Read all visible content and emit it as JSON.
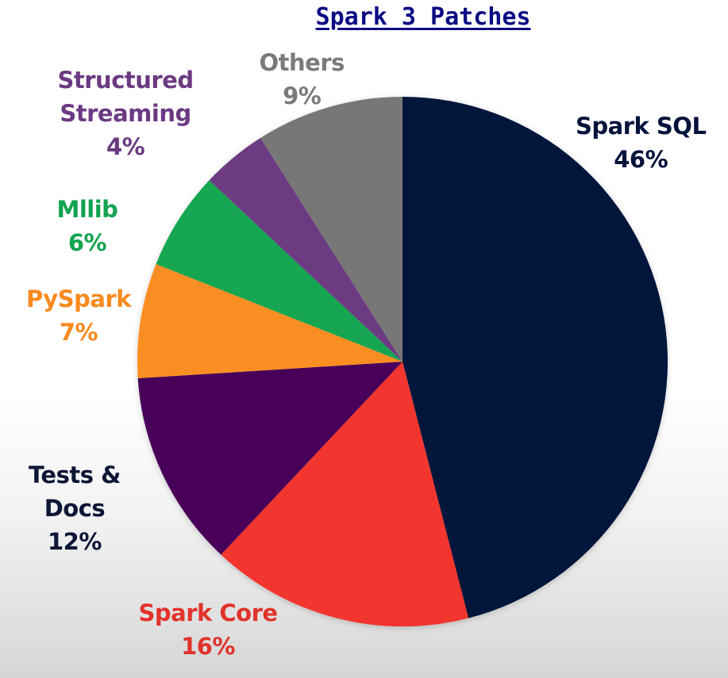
{
  "chart_data": {
    "type": "pie",
    "title": "Spark 3 Patches",
    "slices": [
      {
        "label_lines": [
          "Spark SQL"
        ],
        "value": 46,
        "display": "46%",
        "color": "#02123b",
        "label_color": "#02123b"
      },
      {
        "label_lines": [
          "Spark Core"
        ],
        "value": 16,
        "display": "16%",
        "color": "#f2352f",
        "label_color": "#e1332b"
      },
      {
        "label_lines": [
          "Tests &",
          "Docs"
        ],
        "value": 12,
        "display": "12%",
        "color": "#480058",
        "label_color": "#0d1635"
      },
      {
        "label_lines": [
          "PySpark"
        ],
        "value": 7,
        "display": "7%",
        "color": "#fb8e23",
        "label_color": "#f78a1f"
      },
      {
        "label_lines": [
          "Mllib"
        ],
        "value": 6,
        "display": "6%",
        "color": "#12a651",
        "label_color": "#13a24f"
      },
      {
        "label_lines": [
          "Structured",
          "Streaming"
        ],
        "value": 4,
        "display": "4%",
        "color": "#6d3b82",
        "label_color": "#6b3a82"
      },
      {
        "label_lines": [
          "Others"
        ],
        "value": 9,
        "display": "9%",
        "color": "#777777",
        "label_color": "#7a7a7a"
      }
    ],
    "start_angle_deg": 0,
    "direction": "clockwise",
    "legend": "none"
  }
}
